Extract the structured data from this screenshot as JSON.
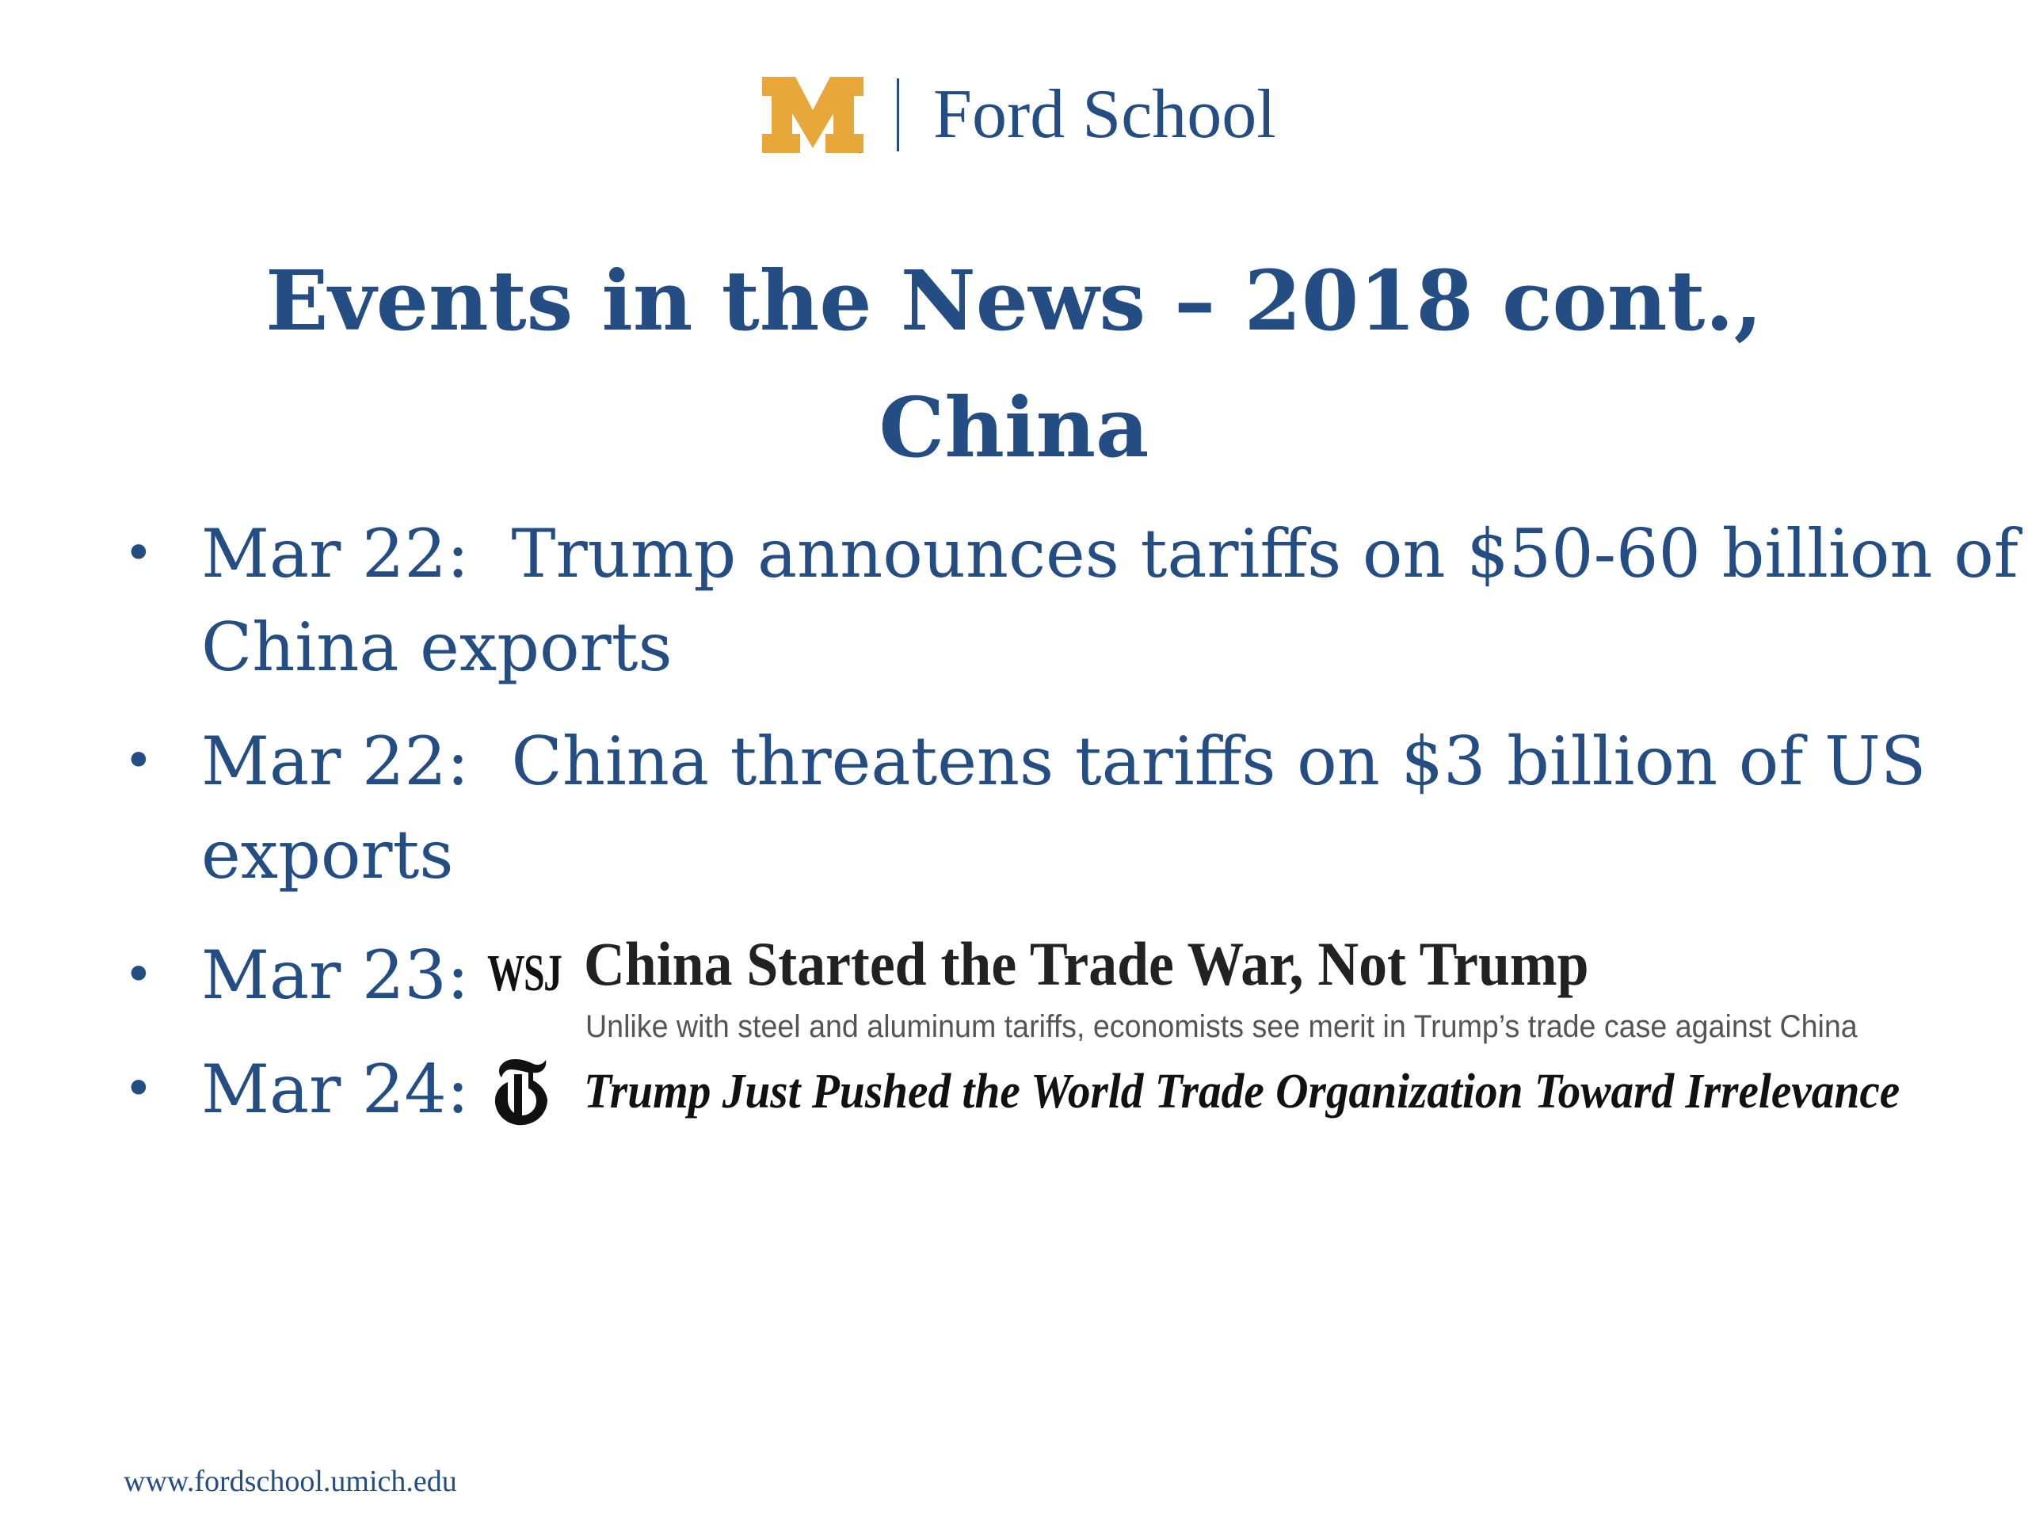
{
  "header": {
    "logo_letter": "M",
    "school_name": "Ford School"
  },
  "title": {
    "line1": "Events in the News – 2018 cont.,",
    "line2": "China"
  },
  "bullets": [
    {
      "date": "Mar 22:",
      "text": "Trump announces tariffs on $50-60 billion of China exports"
    },
    {
      "date": "Mar 22:",
      "text": "China threatens tariffs on $3 billion of US exports"
    },
    {
      "date": "Mar 23:",
      "source_logo": "WSJ",
      "headline": "China Started the Trade War, Not Trump",
      "subheadline": "Unlike with steel and aluminum tariffs, economists see merit in Trump’s trade case against China"
    },
    {
      "date": "Mar 24:",
      "source_logo": "nyt-t-icon",
      "headline": "Trump Just Pushed the World Trade Organization Toward Irrelevance"
    }
  ],
  "footer": {
    "url": "www.fordschool.umich.edu"
  },
  "colors": {
    "brand_blue": "#244d83",
    "maize": "#e8a73a",
    "headline_black": "#222222",
    "subheadline_gray": "#555555"
  }
}
